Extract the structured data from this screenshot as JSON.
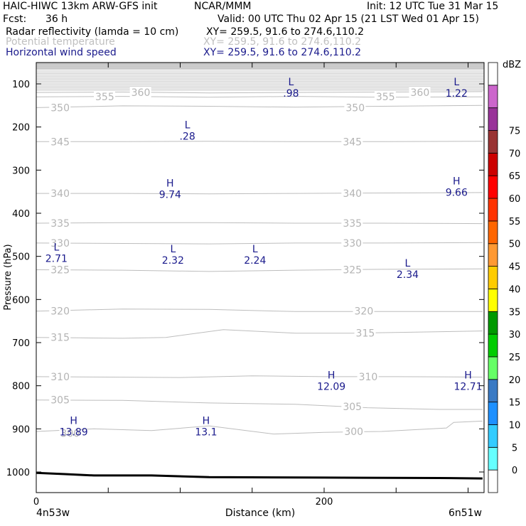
{
  "header": {
    "model": "HAIC-HIWC 13km ARW-GFS init",
    "org": "NCAR/MMM",
    "init": "Init: 12 UTC Tue 31 Mar 15",
    "fcst_label": "Fcst:",
    "fcst_value": "36 h",
    "valid": "Valid: 00 UTC Thu 02 Apr 15 (21 LST Wed 01 Apr 15)",
    "fields": [
      {
        "name": "Radar reflectivity (lamda = 10 cm)",
        "xy": "XY= 259.5, 91.6 to 274.6,110.2",
        "color": "#000000"
      },
      {
        "name": "Potential temperature",
        "xy": "XY= 259.5, 91.6 to 274.6,110.2",
        "color": "#c0c0c0"
      },
      {
        "name": "Horizontal wind speed",
        "xy": "XY= 259.5, 91.6 to 274.6,110.2",
        "color": "#1a1a8c"
      }
    ]
  },
  "chart_data": {
    "type": "cross-section",
    "ylabel": "Pressure (hPa)",
    "xlabel": "Distance (km)",
    "y_ticks": [
      100,
      200,
      300,
      400,
      500,
      600,
      700,
      800,
      900,
      1000
    ],
    "x_ticks": [
      0,
      200
    ],
    "x_end_labels": {
      "left": "4n53w",
      "right": "6n51w"
    },
    "ylim_hPa": [
      50,
      1050
    ],
    "xlim_km": [
      0,
      310
    ],
    "theta_contours_K": [
      300,
      305,
      310,
      315,
      320,
      325,
      330,
      335,
      340,
      345,
      350,
      355,
      360
    ],
    "theta_labels": [
      {
        "text": "360",
        "x": 66,
        "p": 120
      },
      {
        "text": "355",
        "x": 41,
        "p": 130
      },
      {
        "text": "350",
        "x": 10,
        "p": 155
      },
      {
        "text": "350",
        "x": 215,
        "p": 155
      },
      {
        "text": "355",
        "x": 236,
        "p": 130
      },
      {
        "text": "360",
        "x": 260,
        "p": 120
      },
      {
        "text": "345",
        "x": 10,
        "p": 234
      },
      {
        "text": "345",
        "x": 213,
        "p": 234
      },
      {
        "text": "340",
        "x": 10,
        "p": 354
      },
      {
        "text": "340",
        "x": 213,
        "p": 354
      },
      {
        "text": "335",
        "x": 10,
        "p": 423
      },
      {
        "text": "335",
        "x": 213,
        "p": 423
      },
      {
        "text": "330",
        "x": 10,
        "p": 469
      },
      {
        "text": "330",
        "x": 213,
        "p": 469
      },
      {
        "text": "325",
        "x": 10,
        "p": 531
      },
      {
        "text": "325",
        "x": 213,
        "p": 531
      },
      {
        "text": "320",
        "x": 10,
        "p": 627
      },
      {
        "text": "320",
        "x": 221,
        "p": 627
      },
      {
        "text": "315",
        "x": 10,
        "p": 688
      },
      {
        "text": "315",
        "x": 222,
        "p": 678
      },
      {
        "text": "310",
        "x": 10,
        "p": 779
      },
      {
        "text": "310",
        "x": 224,
        "p": 779
      },
      {
        "text": "305",
        "x": 10,
        "p": 833
      },
      {
        "text": "305",
        "x": 213,
        "p": 848
      },
      {
        "text": "300",
        "x": 17,
        "p": 910
      },
      {
        "text": "300",
        "x": 214,
        "p": 906
      }
    ],
    "theta_lines": [
      {
        "K": 300,
        "pts": [
          [
            0,
            906
          ],
          [
            40,
            900
          ],
          [
            80,
            904
          ],
          [
            120,
            893
          ],
          [
            165,
            912
          ],
          [
            200,
            908
          ],
          [
            240,
            906
          ],
          [
            285,
            898
          ],
          [
            290,
            885
          ],
          [
            310,
            882
          ]
        ]
      },
      {
        "K": 305,
        "pts": [
          [
            0,
            833
          ],
          [
            60,
            834
          ],
          [
            120,
            840
          ],
          [
            180,
            843
          ],
          [
            230,
            851
          ],
          [
            280,
            855
          ],
          [
            310,
            855
          ]
        ]
      },
      {
        "K": 310,
        "pts": [
          [
            0,
            779
          ],
          [
            50,
            780
          ],
          [
            100,
            781
          ],
          [
            150,
            777
          ],
          [
            200,
            779
          ],
          [
            250,
            779
          ],
          [
            310,
            780
          ]
        ]
      },
      {
        "K": 315,
        "pts": [
          [
            0,
            688
          ],
          [
            30,
            689
          ],
          [
            60,
            690
          ],
          [
            90,
            688
          ],
          [
            130,
            670
          ],
          [
            180,
            678
          ],
          [
            220,
            678
          ],
          [
            260,
            676
          ],
          [
            310,
            673
          ]
        ]
      },
      {
        "K": 320,
        "pts": [
          [
            0,
            627
          ],
          [
            60,
            622
          ],
          [
            120,
            623
          ],
          [
            180,
            628
          ],
          [
            240,
            628
          ],
          [
            310,
            628
          ]
        ]
      },
      {
        "K": 325,
        "pts": [
          [
            0,
            531
          ],
          [
            60,
            532
          ],
          [
            120,
            535
          ],
          [
            180,
            532
          ],
          [
            240,
            530
          ],
          [
            310,
            529
          ]
        ]
      },
      {
        "K": 330,
        "pts": [
          [
            0,
            469
          ],
          [
            60,
            470
          ],
          [
            120,
            471
          ],
          [
            180,
            469
          ],
          [
            240,
            469
          ],
          [
            310,
            468
          ]
        ]
      },
      {
        "K": 335,
        "pts": [
          [
            0,
            423
          ],
          [
            60,
            422
          ],
          [
            120,
            422
          ],
          [
            180,
            423
          ],
          [
            240,
            423
          ],
          [
            310,
            424
          ]
        ]
      },
      {
        "K": 340,
        "pts": [
          [
            0,
            354
          ],
          [
            60,
            354
          ],
          [
            120,
            355
          ],
          [
            180,
            354
          ],
          [
            240,
            353
          ],
          [
            310,
            352
          ]
        ]
      },
      {
        "K": 345,
        "pts": [
          [
            0,
            234
          ],
          [
            60,
            234
          ],
          [
            120,
            233
          ],
          [
            180,
            234
          ],
          [
            240,
            234
          ],
          [
            310,
            233
          ]
        ]
      },
      {
        "K": 350,
        "pts": [
          [
            0,
            155
          ],
          [
            60,
            151
          ],
          [
            120,
            152
          ],
          [
            180,
            154
          ],
          [
            240,
            152
          ],
          [
            310,
            150
          ]
        ]
      },
      {
        "K": 355,
        "pts": [
          [
            0,
            130
          ],
          [
            60,
            129
          ],
          [
            120,
            131
          ],
          [
            180,
            129
          ],
          [
            240,
            131
          ],
          [
            310,
            130
          ]
        ]
      },
      {
        "K": 360,
        "pts": [
          [
            0,
            120
          ],
          [
            60,
            119
          ],
          [
            120,
            121
          ],
          [
            180,
            120
          ],
          [
            240,
            119
          ],
          [
            310,
            118
          ]
        ]
      }
    ],
    "upper_theta_stack_hPa": [
      58,
      62,
      66,
      70,
      73,
      76,
      79,
      82,
      85,
      88,
      91,
      94,
      97,
      100,
      103,
      106,
      109,
      112,
      115
    ],
    "wind_extrema": [
      {
        "type": "L",
        "value": ".98",
        "x": 177,
        "p": 110
      },
      {
        "type": "L",
        "value": "1.22",
        "x": 292,
        "p": 110
      },
      {
        "type": "L",
        "value": ".28",
        "x": 105,
        "p": 210
      },
      {
        "type": "H",
        "value": "9.74",
        "x": 93,
        "p": 345
      },
      {
        "type": "H",
        "value": "9.66",
        "x": 292,
        "p": 340
      },
      {
        "type": "L",
        "value": "2.71",
        "x": 14,
        "p": 493
      },
      {
        "type": "L",
        "value": "2.32",
        "x": 95,
        "p": 497
      },
      {
        "type": "L",
        "value": "2.24",
        "x": 152,
        "p": 497
      },
      {
        "type": "L",
        "value": "2.34",
        "x": 258,
        "p": 530
      },
      {
        "type": "H",
        "value": "12.09",
        "x": 205,
        "p": 790
      },
      {
        "type": "H",
        "value": "12.71",
        "x": 300,
        "p": 790
      },
      {
        "type": "H",
        "value": "13.89",
        "x": 26,
        "p": 895
      },
      {
        "type": "H",
        "value": "13.1",
        "x": 118,
        "p": 895
      }
    ],
    "terrain_hPa": [
      [
        0,
        1002
      ],
      [
        20,
        1005
      ],
      [
        40,
        1008
      ],
      [
        80,
        1008
      ],
      [
        120,
        1012
      ],
      [
        200,
        1013
      ],
      [
        280,
        1014
      ],
      [
        310,
        1015
      ]
    ],
    "colorbar": {
      "unit": "dBZ",
      "levels": [
        0,
        5,
        10,
        15,
        20,
        25,
        30,
        35,
        40,
        45,
        50,
        55,
        60,
        65,
        70,
        75
      ],
      "colors": [
        "#ffffff",
        "#66ffff",
        "#33ccff",
        "#1e90ff",
        "#3a7ac4",
        "#66ff66",
        "#00cc00",
        "#009900",
        "#ffff00",
        "#ffcc00",
        "#ff9933",
        "#ff6600",
        "#ff3300",
        "#ff0000",
        "#cc0000",
        "#993333",
        "#993399",
        "#cc66cc",
        "#ffffff"
      ]
    }
  }
}
